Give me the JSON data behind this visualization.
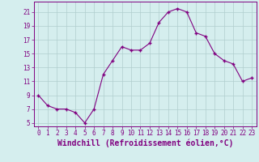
{
  "x": [
    0,
    1,
    2,
    3,
    4,
    5,
    6,
    7,
    8,
    9,
    10,
    11,
    12,
    13,
    14,
    15,
    16,
    17,
    18,
    19,
    20,
    21,
    22,
    23
  ],
  "y": [
    9,
    7.5,
    7,
    7,
    6.5,
    5,
    7,
    12,
    14,
    16,
    15.5,
    15.5,
    16.5,
    19.5,
    21,
    21.5,
    21,
    18,
    17.5,
    15,
    14,
    13.5,
    11,
    11.5
  ],
  "line_color": "#800080",
  "marker": "+",
  "marker_size": 3.5,
  "marker_lw": 1.0,
  "line_width": 0.8,
  "bg_color": "#d5eeee",
  "grid_color": "#b0cece",
  "xlabel": "Windchill (Refroidissement éolien,°C)",
  "xlabel_fontsize": 7,
  "ylabel_ticks": [
    5,
    7,
    9,
    11,
    13,
    15,
    17,
    19,
    21
  ],
  "xlim": [
    -0.5,
    23.5
  ],
  "ylim": [
    4.5,
    22.5
  ],
  "xtick_labels": [
    "0",
    "1",
    "2",
    "3",
    "4",
    "5",
    "6",
    "7",
    "8",
    "9",
    "10",
    "11",
    "12",
    "13",
    "14",
    "15",
    "16",
    "17",
    "18",
    "19",
    "20",
    "21",
    "22",
    "23"
  ],
  "tick_color": "#800080",
  "label_color": "#800080",
  "tick_fontsize": 5.5,
  "spine_color": "#800080"
}
